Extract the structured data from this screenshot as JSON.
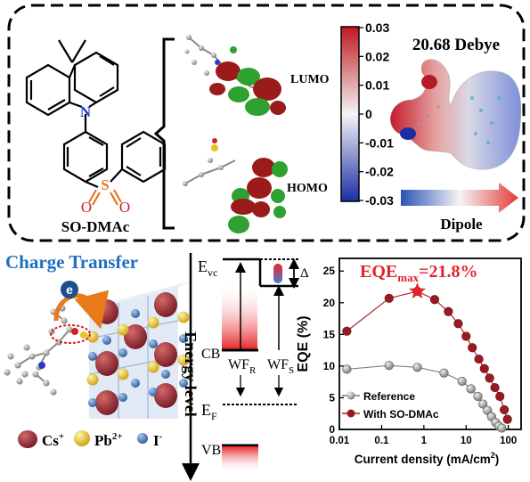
{
  "molecule": {
    "name": "SO-DMAc",
    "atom_n": "N",
    "atom_s": "S",
    "atom_o1": "O",
    "atom_o2": "O"
  },
  "orbitals": {
    "lumo_label": "LUMO",
    "homo_label": "HOMO"
  },
  "esp": {
    "dipole_value": "20.68 Debye",
    "dipole_label": "Dipole",
    "colorbar_ticks": [
      "0.03",
      "0.02",
      "0.01",
      "0",
      "-0.01",
      "-0.02",
      "-0.03"
    ],
    "colorbar_top": "#c0181f",
    "colorbar_mid": "#f4f4f4",
    "colorbar_bottom": "#1a2da6"
  },
  "charge_transfer": {
    "title": "Charge Transfer",
    "title_color": "#1f6fc0",
    "electron_symbol": "e",
    "legend": [
      {
        "label": "Cs",
        "sup": "+",
        "icon": "cs-sphere",
        "color": "#8b1e2a"
      },
      {
        "label": "Pb",
        "sup": "2+",
        "icon": "pb-sphere",
        "color": "#e6c21f"
      },
      {
        "label": "I",
        "sup": "-",
        "icon": "i-sphere",
        "color": "#3d6fb0"
      }
    ]
  },
  "energy": {
    "axis_label": "Energy level",
    "evc_main": "E",
    "evc_sub": "vc",
    "cb": "CB",
    "wfr_main": "WF",
    "wfr_sub": "R",
    "wfs_main": "WF",
    "wfs_sub": "S",
    "ef_main": "E",
    "ef_sub": "F",
    "vb": "VB",
    "delta": "Δ"
  },
  "chart_data": {
    "type": "line",
    "annotation": "EQE",
    "annotation_sub": "max",
    "annotation_value": "=21.8%",
    "annotation_color": "#e0242b",
    "xlabel": "Current density (mA/cm",
    "xlabel_sup": "2",
    "xlabel_end": ")",
    "ylabel": "EQE (%)",
    "xscale": "log",
    "xlim": [
      0.01,
      200
    ],
    "ylim": [
      0,
      27
    ],
    "xticks": [
      0.01,
      0.1,
      1,
      10,
      100
    ],
    "xtick_labels": [
      "0.01",
      "0.1",
      "1",
      "10",
      "100"
    ],
    "yticks": [
      0,
      5,
      10,
      15,
      20,
      25
    ],
    "ytick_labels": [
      "0",
      "5",
      "10",
      "15",
      "20",
      "25"
    ],
    "legend_position": "bottom-right",
    "series": [
      {
        "name": "Reference",
        "color": "#7f7f7f",
        "x": [
          0.015,
          0.15,
          0.7,
          3.0,
          8,
          13,
          19,
          25,
          32,
          40,
          50,
          60,
          70
        ],
        "y": [
          9.5,
          10.1,
          9.8,
          8.9,
          7.6,
          6.4,
          5.2,
          4.0,
          3.0,
          2.0,
          1.1,
          0.5,
          0.2
        ]
      },
      {
        "name": "With SO-DMAc",
        "color": "#b22222",
        "x": [
          0.015,
          0.15,
          0.7,
          1.8,
          3.8,
          6.5,
          10,
          14,
          20,
          27,
          36,
          48,
          63,
          80,
          95
        ],
        "y": [
          15.5,
          20.7,
          21.8,
          20.5,
          18.6,
          16.7,
          14.7,
          12.9,
          11.1,
          9.6,
          8.1,
          6.6,
          5.2,
          3.1,
          1.6
        ]
      }
    ]
  }
}
